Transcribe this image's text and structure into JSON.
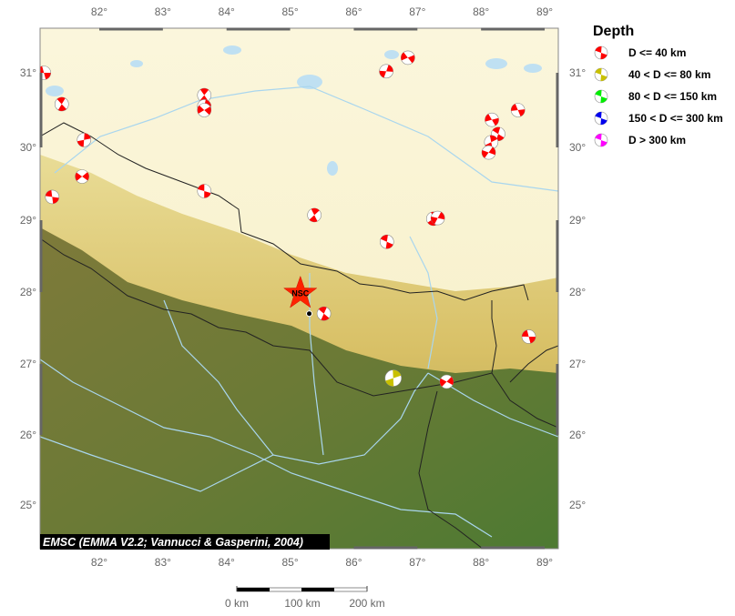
{
  "map": {
    "credit": "EMSC (EMMA V2.2; Vannucci & Gasperini, 2004)",
    "lon_ticks": [
      82,
      83,
      84,
      85,
      86,
      87,
      88,
      89
    ],
    "lon_labels": [
      "82°",
      "83°",
      "84°",
      "85°",
      "86°",
      "87°",
      "88°",
      "89°"
    ],
    "lat_ticks": [
      31,
      30,
      29,
      28,
      27,
      26,
      25
    ],
    "lat_labels": [
      "31°",
      "30°",
      "29°",
      "28°",
      "27°",
      "26°",
      "25°"
    ],
    "epicenter": {
      "label": "NSC",
      "lon": 85.16,
      "lat": 27.98,
      "color": "#ff2200"
    },
    "station": {
      "lon": 85.3,
      "lat": 27.7
    },
    "events": [
      {
        "lon": 81.13,
        "lat": 31.0,
        "depth_class": 0
      },
      {
        "lon": 81.41,
        "lat": 30.58,
        "depth_class": 0
      },
      {
        "lon": 81.76,
        "lat": 30.1,
        "depth_class": 0
      },
      {
        "lon": 81.73,
        "lat": 29.6,
        "depth_class": 0
      },
      {
        "lon": 81.26,
        "lat": 29.32,
        "depth_class": 0
      },
      {
        "lon": 83.65,
        "lat": 30.7,
        "depth_class": 0
      },
      {
        "lon": 83.65,
        "lat": 30.55,
        "depth_class": 0
      },
      {
        "lon": 83.65,
        "lat": 30.5,
        "depth_class": 0
      },
      {
        "lon": 83.65,
        "lat": 29.4,
        "depth_class": 0
      },
      {
        "lon": 85.38,
        "lat": 29.07,
        "depth_class": 0
      },
      {
        "lon": 86.51,
        "lat": 31.02,
        "depth_class": 0
      },
      {
        "lon": 86.85,
        "lat": 31.2,
        "depth_class": 0
      },
      {
        "lon": 86.52,
        "lat": 28.7,
        "depth_class": 0
      },
      {
        "lon": 87.25,
        "lat": 29.02,
        "depth_class": 0
      },
      {
        "lon": 87.32,
        "lat": 29.03,
        "depth_class": 0
      },
      {
        "lon": 88.17,
        "lat": 30.37,
        "depth_class": 0
      },
      {
        "lon": 88.27,
        "lat": 30.18,
        "depth_class": 0
      },
      {
        "lon": 88.16,
        "lat": 30.07,
        "depth_class": 0
      },
      {
        "lon": 88.12,
        "lat": 29.93,
        "depth_class": 0
      },
      {
        "lon": 88.58,
        "lat": 30.5,
        "depth_class": 0
      },
      {
        "lon": 85.53,
        "lat": 27.7,
        "depth_class": 0
      },
      {
        "lon": 86.62,
        "lat": 26.8,
        "depth_class": 1
      },
      {
        "lon": 87.46,
        "lat": 26.75,
        "depth_class": 0
      },
      {
        "lon": 88.75,
        "lat": 27.38,
        "depth_class": 0
      }
    ]
  },
  "legend": {
    "title": "Depth",
    "items": [
      {
        "label": "D <= 40 km",
        "color": "#ff0000"
      },
      {
        "label": "40 < D <= 80 km",
        "color": "#c8c000"
      },
      {
        "label": "80 < D <= 150 km",
        "color": "#00ee00"
      },
      {
        "label": "150 < D <= 300 km",
        "color": "#0000ee"
      },
      {
        "label": "D > 300 km",
        "color": "#ff00ff"
      }
    ]
  },
  "scale_bar": {
    "labels": [
      "0 km",
      "100 km",
      "200 km"
    ]
  }
}
